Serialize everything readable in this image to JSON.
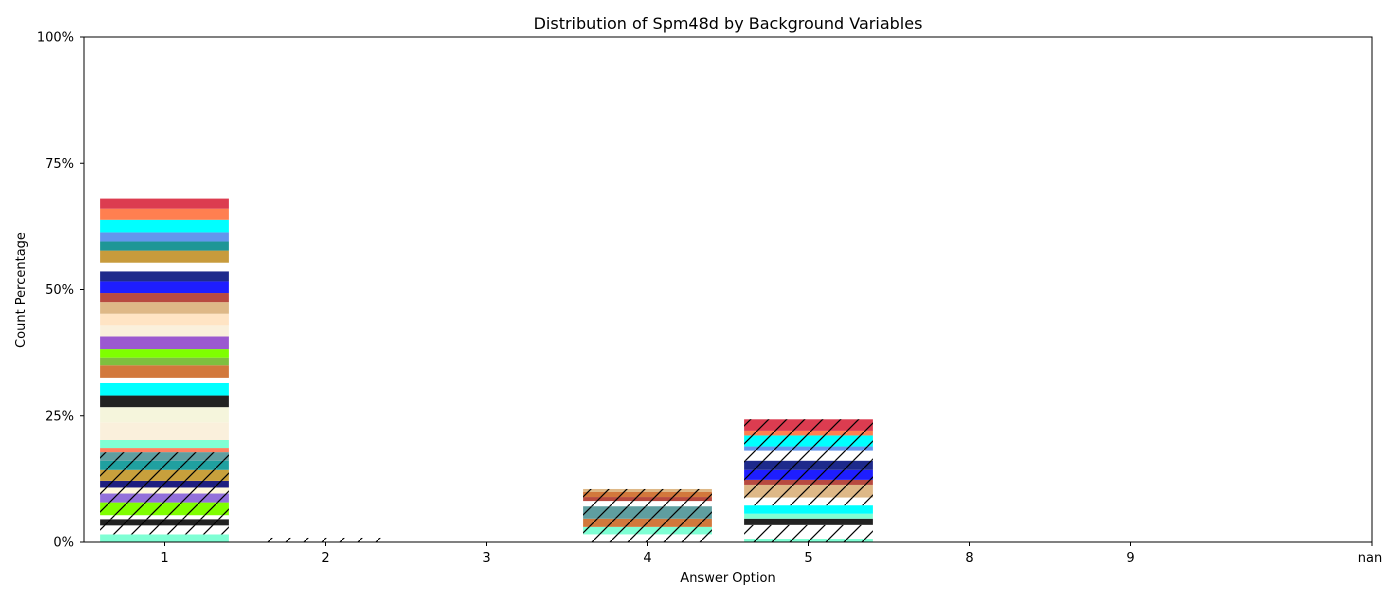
{
  "chart_data": {
    "type": "bar",
    "stacked": true,
    "title": "Distribution of Spm48d by Background Variables",
    "xlabel": "Answer Option",
    "ylabel": "Count Percentage",
    "categories": [
      "1",
      "2",
      "3",
      "4",
      "5",
      "8",
      "9",
      "nan"
    ],
    "ylim": [
      0,
      100
    ],
    "yticks": [
      {
        "value": 0,
        "label": "0%"
      },
      {
        "value": 25,
        "label": "25%"
      },
      {
        "value": 50,
        "label": "50%"
      },
      {
        "value": 75,
        "label": "75%"
      },
      {
        "value": 100,
        "label": "100%"
      }
    ],
    "grid": false,
    "legend": false,
    "stacks": [
      {
        "category": "1",
        "segments": [
          {
            "value": 1.5,
            "color": "#7fffd4",
            "hatch": false
          },
          {
            "value": 1.8,
            "color": "#ffffff",
            "hatch": true
          },
          {
            "value": 1.2,
            "color": "#222222",
            "hatch": true
          },
          {
            "value": 0.8,
            "color": "#ffffff",
            "hatch": true
          },
          {
            "value": 2.5,
            "color": "#7fff00",
            "hatch": true
          },
          {
            "value": 1.8,
            "color": "#9370db",
            "hatch": true
          },
          {
            "value": 1.2,
            "color": "#fff8dc",
            "hatch": true
          },
          {
            "value": 1.3,
            "color": "#1e1e80",
            "hatch": true
          },
          {
            "value": 2.2,
            "color": "#c8a03c",
            "hatch": true
          },
          {
            "value": 1.8,
            "color": "#20a0a0",
            "hatch": true
          },
          {
            "value": 1.7,
            "color": "#5f9ea0",
            "hatch": true
          },
          {
            "value": 0.8,
            "color": "#ff8060",
            "hatch": false
          },
          {
            "value": 1.6,
            "color": "#7fffd4",
            "hatch": false
          },
          {
            "value": 3.5,
            "color": "#faf0dc",
            "hatch": false
          },
          {
            "value": 3.0,
            "color": "#f5f5dc",
            "hatch": false
          },
          {
            "value": 2.3,
            "color": "#222222",
            "hatch": false
          },
          {
            "value": 2.5,
            "color": "#00ffff",
            "hatch": false
          },
          {
            "value": 1.0,
            "color": "#ffffff",
            "hatch": false
          },
          {
            "value": 2.5,
            "color": "#d2783c",
            "hatch": false
          },
          {
            "value": 1.5,
            "color": "#7fbf3f",
            "hatch": false
          },
          {
            "value": 1.7,
            "color": "#7fff00",
            "hatch": false
          },
          {
            "value": 2.5,
            "color": "#9b59d0",
            "hatch": false
          },
          {
            "value": 2.2,
            "color": "#faf0dc",
            "hatch": false
          },
          {
            "value": 2.3,
            "color": "#ffe4c4",
            "hatch": false
          },
          {
            "value": 2.3,
            "color": "#deb887",
            "hatch": false
          },
          {
            "value": 1.8,
            "color": "#b84a40",
            "hatch": false
          },
          {
            "value": 2.3,
            "color": "#1e1eff",
            "hatch": false
          },
          {
            "value": 2.0,
            "color": "#1e2a8c",
            "hatch": false
          },
          {
            "value": 1.7,
            "color": "#ffffff",
            "hatch": false
          },
          {
            "value": 2.4,
            "color": "#c89b3c",
            "hatch": false
          },
          {
            "value": 1.8,
            "color": "#1e9696",
            "hatch": false
          },
          {
            "value": 1.8,
            "color": "#6495ed",
            "hatch": false
          },
          {
            "value": 2.5,
            "color": "#00ffff",
            "hatch": false
          },
          {
            "value": 2.2,
            "color": "#ff7f50",
            "hatch": false
          },
          {
            "value": 2.0,
            "color": "#dc3c50",
            "hatch": false
          }
        ]
      },
      {
        "category": "2",
        "segments": [
          {
            "value": 0.8,
            "color": "#ffffff",
            "hatch": true
          }
        ]
      },
      {
        "category": "4",
        "segments": [
          {
            "value": 1.5,
            "color": "#ffffff",
            "hatch": true
          },
          {
            "value": 1.5,
            "color": "#7fffd4",
            "hatch": true
          },
          {
            "value": 1.6,
            "color": "#d2783c",
            "hatch": true
          },
          {
            "value": 2.5,
            "color": "#5f9ea0",
            "hatch": true
          },
          {
            "value": 1.0,
            "color": "#ffffff",
            "hatch": true
          },
          {
            "value": 0.8,
            "color": "#b84a40",
            "hatch": true
          },
          {
            "value": 1.0,
            "color": "#d2783c",
            "hatch": true
          },
          {
            "value": 0.6,
            "color": "#deb887",
            "hatch": true
          }
        ]
      },
      {
        "category": "5",
        "segments": [
          {
            "value": 0.6,
            "color": "#7fffd4",
            "hatch": true
          },
          {
            "value": 2.8,
            "color": "#ffffff",
            "hatch": true
          },
          {
            "value": 1.2,
            "color": "#222222",
            "hatch": false
          },
          {
            "value": 1.0,
            "color": "#7fffd4",
            "hatch": false
          },
          {
            "value": 1.7,
            "color": "#00ffff",
            "hatch": false
          },
          {
            "value": 1.5,
            "color": "#ffffff",
            "hatch": true
          },
          {
            "value": 2.5,
            "color": "#deb887",
            "hatch": true
          },
          {
            "value": 1.0,
            "color": "#b84a40",
            "hatch": true
          },
          {
            "value": 2.0,
            "color": "#1e1eff",
            "hatch": true
          },
          {
            "value": 1.8,
            "color": "#1e2a8c",
            "hatch": true
          },
          {
            "value": 2.0,
            "color": "#ffffff",
            "hatch": true
          },
          {
            "value": 0.8,
            "color": "#6495ed",
            "hatch": true
          },
          {
            "value": 2.2,
            "color": "#00ffff",
            "hatch": true
          },
          {
            "value": 0.9,
            "color": "#ff7f50",
            "hatch": true
          },
          {
            "value": 2.3,
            "color": "#dc3c50",
            "hatch": true
          }
        ]
      }
    ]
  }
}
